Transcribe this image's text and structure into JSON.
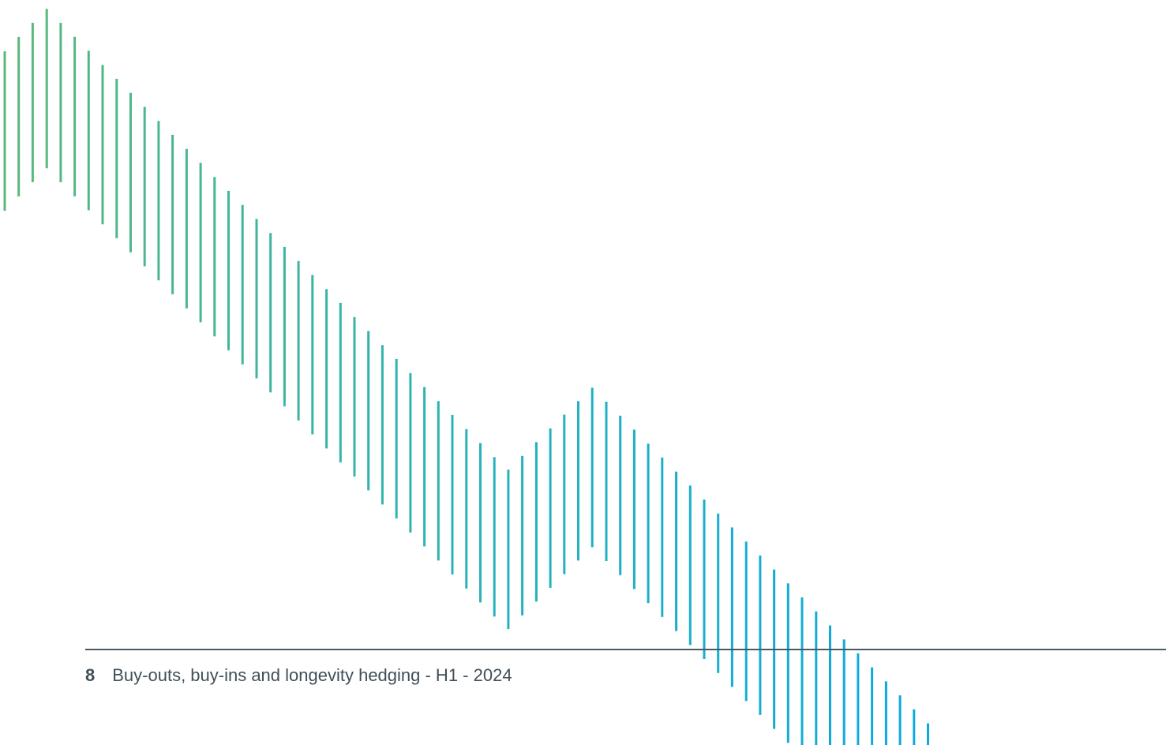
{
  "decoration": {
    "name": "striped-wave-graphic",
    "color_start": "#5cb87a",
    "color_mid": "#28b3b8",
    "color_end": "#0aa9e2"
  },
  "footer": {
    "page_number": "8",
    "title": "Buy-outs, buy-ins and longevity hedging - H1 - 2024"
  }
}
